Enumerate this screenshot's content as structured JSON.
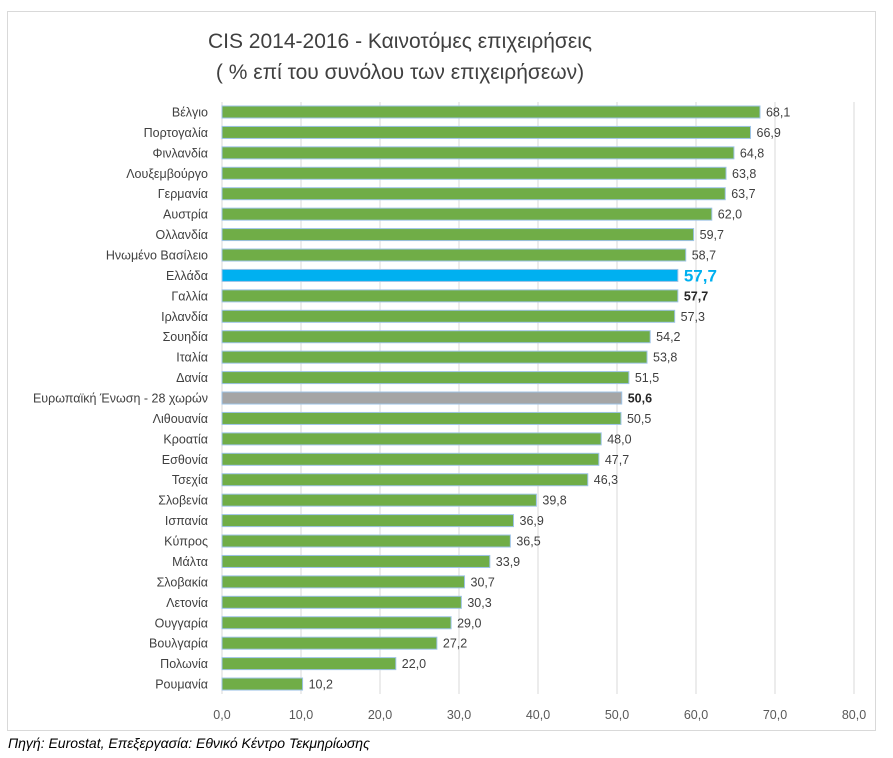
{
  "chart_data": {
    "type": "bar",
    "orientation": "horizontal",
    "title": "CIS 2014-2016 - Καινοτόμες επιχειρήσεις",
    "subtitle": "( % επί του συνόλου των επιχειρήσεων)",
    "categories": [
      "Βέλγιο",
      "Πορτογαλία",
      "Φινλανδία",
      "Λουξεμβούργο",
      "Γερμανία",
      "Αυστρία",
      "Ολλανδία",
      "Ηνωμένο Βασίλειο",
      "Ελλάδα",
      "Γαλλία",
      "Ιρλανδία",
      "Σουηδία",
      "Ιταλία",
      "Δανία",
      "Ευρωπαϊκή Ένωση - 28 χωρών",
      "Λιθουανία",
      "Κροατία",
      "Εσθονία",
      "Τσεχία",
      "Σλοβενία",
      "Ισπανία",
      "Κύπρος",
      "Μάλτα",
      "Σλοβακία",
      "Λετονία",
      "Ουγγαρία",
      "Βουλγαρία",
      "Πολωνία",
      "Ρουμανία"
    ],
    "values": [
      68.1,
      66.9,
      64.8,
      63.8,
      63.7,
      62.0,
      59.7,
      58.7,
      57.7,
      57.7,
      57.3,
      54.2,
      53.8,
      51.5,
      50.6,
      50.5,
      48.0,
      47.7,
      46.3,
      39.8,
      36.9,
      36.5,
      33.9,
      30.7,
      30.3,
      29.0,
      27.2,
      22.0,
      10.2
    ],
    "value_labels": [
      "68,1",
      "66,9",
      "64,8",
      "63,8",
      "63,7",
      "62,0",
      "59,7",
      "58,7",
      "57,7",
      "57,7",
      "57,3",
      "54,2",
      "53,8",
      "51,5",
      "50,6",
      "50,5",
      "48,0",
      "47,7",
      "46,3",
      "39,8",
      "36,9",
      "36,5",
      "33,9",
      "30,7",
      "30,3",
      "29,0",
      "27,2",
      "22,0",
      "10,2"
    ],
    "xlim": [
      0,
      80
    ],
    "x_ticks": [
      "0,0",
      "10,0",
      "20,0",
      "30,0",
      "40,0",
      "50,0",
      "60,0",
      "70,0",
      "80,0"
    ],
    "grid": true,
    "legend": "none",
    "colors": {
      "default": "#70ad47",
      "highlight": "#00b0f0",
      "eu": "#a5a5a5",
      "bar_border": "#9dc3e6",
      "grid": "#d9d9d9"
    },
    "highlight_category": "Ελλάδα",
    "eu_category": "Ευρωπαϊκή Ένωση - 28 χωρών"
  },
  "source": "Πηγή: Eurostat, Επεξεργασία: Εθνικό Κέντρο Τεκμηρίωσης"
}
